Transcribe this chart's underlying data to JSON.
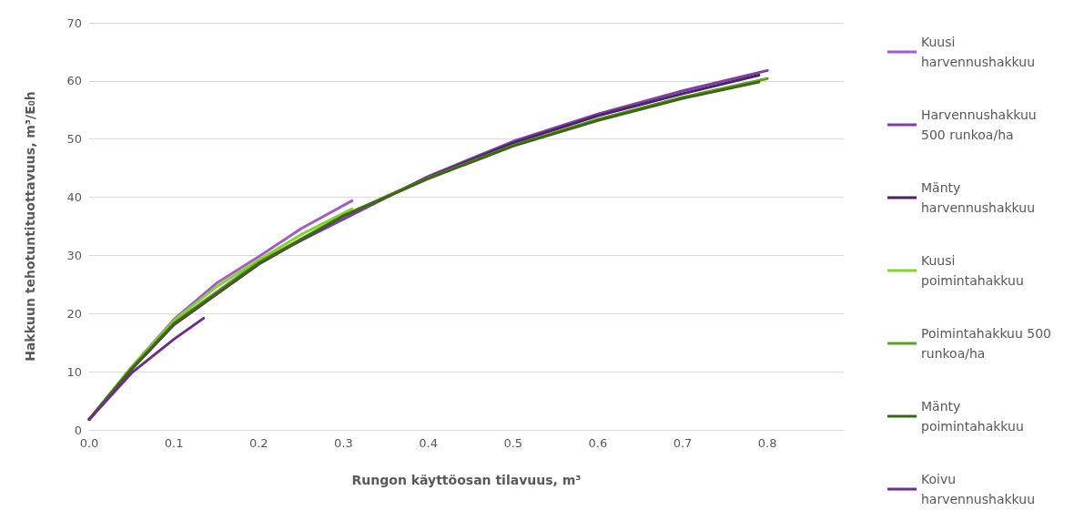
{
  "chart_data": {
    "type": "line",
    "xlabel": "Rungon käyttöosan tilavuus, m³",
    "ylabel": "Hakkuun tehotuntituottavuus, m³/E₀h",
    "xlim": [
      0,
      0.89
    ],
    "xticks": [
      {
        "value": 0,
        "label": "0.0"
      },
      0.1,
      0.2,
      0.3,
      0.4,
      0.5,
      0.6,
      0.7,
      0.8
    ],
    "ylim": [
      0,
      70
    ],
    "yticks": [
      0,
      10,
      20,
      30,
      40,
      50,
      60,
      70
    ],
    "grid": "y",
    "legend": "right",
    "marker": "none",
    "line_style": "solid",
    "series": [
      {
        "name": "Kuusi harvennushakkuu",
        "color": "#a35cc4",
        "x": [
          0,
          0.05,
          0.1,
          0.15,
          0.2,
          0.25,
          0.31
        ],
        "values": [
          1.8,
          10.8,
          19.0,
          25.2,
          29.8,
          34.6,
          39.4
        ]
      },
      {
        "name": "Harvennushakkuu 500 runkoa/ha",
        "color": "#7d3fa6",
        "x": [
          0,
          0.05,
          0.1,
          0.2,
          0.4,
          0.5,
          0.6,
          0.7,
          0.8
        ],
        "values": [
          1.8,
          10.6,
          18.4,
          28.9,
          43.6,
          49.6,
          54.3,
          58.3,
          61.8
        ]
      },
      {
        "name": "Mänty harvennushakkuu",
        "color": "#4a2366",
        "x": [
          0,
          0.05,
          0.1,
          0.2,
          0.3,
          0.4,
          0.5,
          0.6,
          0.7,
          0.79
        ],
        "values": [
          1.8,
          10.4,
          18.1,
          28.5,
          36.8,
          43.4,
          49.3,
          54.0,
          57.8,
          61.0
        ]
      },
      {
        "name": "Kuusi poimintahakkuu",
        "color": "#84d42f",
        "x": [
          0,
          0.05,
          0.1,
          0.15,
          0.2,
          0.25,
          0.31
        ],
        "values": [
          1.8,
          10.8,
          18.8,
          24.6,
          29.2,
          33.6,
          38.0
        ]
      },
      {
        "name": "Poimintahakkuu 500 runkoa/ha",
        "color": "#5fa220",
        "x": [
          0,
          0.05,
          0.1,
          0.2,
          0.3,
          0.4,
          0.5,
          0.6,
          0.7,
          0.8
        ],
        "values": [
          1.8,
          10.6,
          18.4,
          28.8,
          36.9,
          43.3,
          48.9,
          53.4,
          57.2,
          60.4
        ]
      },
      {
        "name": "Mänty poimintahakkuu",
        "color": "#3e6418",
        "x": [
          0,
          0.05,
          0.1,
          0.2,
          0.3,
          0.4,
          0.5,
          0.6,
          0.7,
          0.79
        ],
        "values": [
          1.8,
          10.5,
          18.2,
          28.6,
          36.8,
          43.2,
          48.8,
          53.2,
          57.0,
          59.8
        ]
      },
      {
        "name": "Koivu harvennushakkuu",
        "color": "#6b2f8a",
        "x": [
          0,
          0.05,
          0.1,
          0.135
        ],
        "values": [
          1.8,
          9.8,
          15.6,
          19.2
        ]
      }
    ]
  }
}
